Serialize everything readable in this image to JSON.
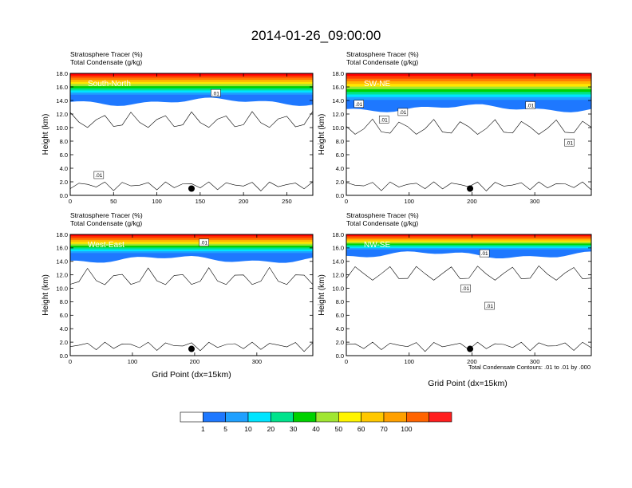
{
  "title": "2014-01-26_09:00:00",
  "shared": {
    "ylabel": "Height (km)",
    "xlabel": "Grid Point (dx=15km)",
    "footnote": "Total Condensate Contours: .01 to .01 by .000",
    "yticks": [
      "0.0",
      "2.0",
      "4.0",
      "6.0",
      "8.0",
      "10.0",
      "12.0",
      "14.0",
      "16.0",
      "18.0"
    ]
  },
  "chart_data": [
    {
      "type": "heatmap",
      "label": "South-North",
      "header_line1": "Stratosphere Tracer   (%)",
      "header_line2": "Total Condensate   (g/kg)",
      "xlim": [
        0,
        280
      ],
      "ylim": [
        0,
        18
      ],
      "xticks": [
        0,
        50,
        100,
        150,
        200,
        250
      ],
      "tropopause_km": 13.8,
      "contour_labels": [
        {
          "text": ".01",
          "x": 33,
          "y": 3.0
        },
        {
          "text": ".01",
          "x": 168,
          "y": 15.1
        }
      ],
      "marker": {
        "x": 140,
        "y": 1.0
      }
    },
    {
      "type": "heatmap",
      "label": "SW-NE",
      "header_line1": "Stratosphere Tracer   (%)",
      "header_line2": "Total Condensate   (g/kg)",
      "xlim": [
        0,
        390
      ],
      "ylim": [
        0,
        18
      ],
      "xticks": [
        0,
        100,
        200,
        300
      ],
      "tropopause_km": 12.8,
      "contour_labels": [
        {
          "text": ".01",
          "x": 20,
          "y": 13.5
        },
        {
          "text": ".01",
          "x": 60,
          "y": 11.2
        },
        {
          "text": ".01",
          "x": 90,
          "y": 12.3
        },
        {
          "text": ".01",
          "x": 293,
          "y": 13.3
        },
        {
          "text": ".01",
          "x": 355,
          "y": 7.8
        }
      ],
      "marker": {
        "x": 197,
        "y": 1.0
      }
    },
    {
      "type": "heatmap",
      "label": "West-East",
      "header_line1": "Stratosphere Tracer   (%)",
      "header_line2": "Total Condensate   (g/kg)",
      "xlim": [
        0,
        390
      ],
      "ylim": [
        0,
        18
      ],
      "xticks": [
        0,
        100,
        200,
        300
      ],
      "tropopause_km": 14.3,
      "contour_labels": [
        {
          "text": ".01",
          "x": 215,
          "y": 16.8
        }
      ],
      "marker": {
        "x": 195,
        "y": 1.0
      }
    },
    {
      "type": "heatmap",
      "label": "NW-SE",
      "header_line1": "Stratosphere Tracer   (%)",
      "header_line2": "Total Condensate   (g/kg)",
      "xlim": [
        0,
        390
      ],
      "ylim": [
        0,
        18
      ],
      "xticks": [
        0,
        100,
        200,
        300
      ],
      "tropopause_km": 15.0,
      "contour_labels": [
        {
          "text": ".01",
          "x": 220,
          "y": 15.2
        },
        {
          "text": ".01",
          "x": 190,
          "y": 10.0
        },
        {
          "text": ".01",
          "x": 228,
          "y": 7.4
        }
      ],
      "marker": {
        "x": 197,
        "y": 1.0
      }
    }
  ],
  "colorbar": {
    "labels": [
      "1",
      "5",
      "10",
      "20",
      "30",
      "40",
      "50",
      "60",
      "70",
      "100"
    ],
    "colors": [
      "#ffffff",
      "#1e78ff",
      "#1fa0ff",
      "#00e5ff",
      "#00e38c",
      "#00d200",
      "#a0e632",
      "#fff500",
      "#ffc800",
      "#ffa000",
      "#ff6400",
      "#ff1e1e"
    ]
  }
}
